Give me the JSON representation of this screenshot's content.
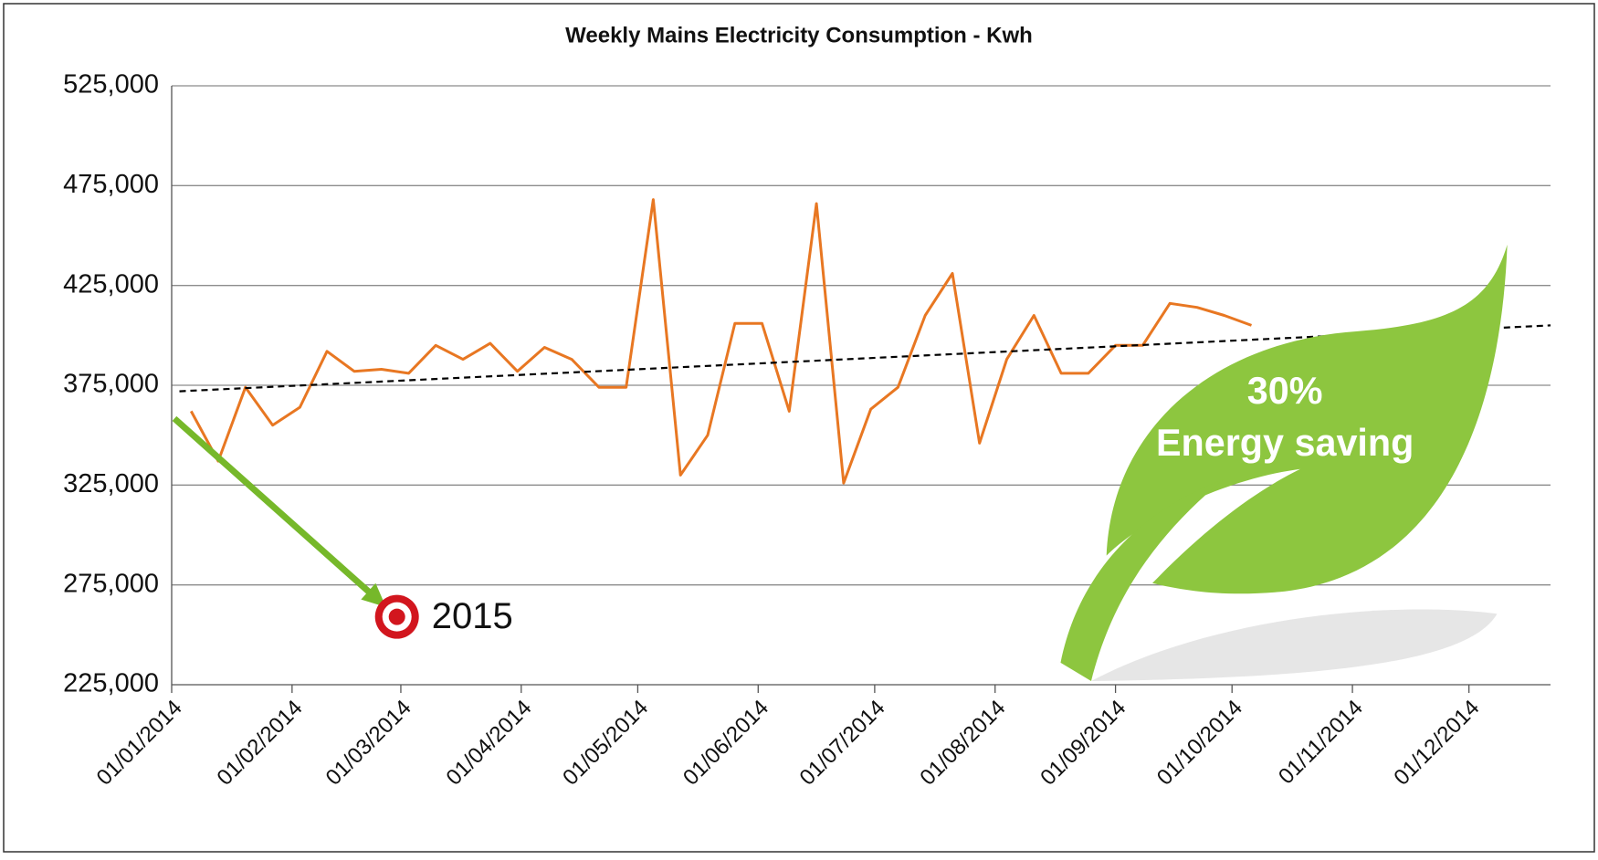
{
  "chart_data": {
    "type": "line",
    "title": "Weekly Mains  Electricity Consumption  - Kwh",
    "x": [
      "2014-01-06",
      "2014-01-13",
      "2014-01-20",
      "2014-01-27",
      "2014-02-03",
      "2014-02-10",
      "2014-02-17",
      "2014-02-24",
      "2014-03-03",
      "2014-03-10",
      "2014-03-17",
      "2014-03-24",
      "2014-03-31",
      "2014-04-07",
      "2014-04-14",
      "2014-04-21",
      "2014-04-28",
      "2014-05-05",
      "2014-05-12",
      "2014-05-19",
      "2014-05-26",
      "2014-06-02",
      "2014-06-09",
      "2014-06-16",
      "2014-06-23",
      "2014-06-30",
      "2014-07-07",
      "2014-07-14",
      "2014-07-21",
      "2014-07-28",
      "2014-08-04",
      "2014-08-11",
      "2014-08-18",
      "2014-08-25",
      "2014-09-01",
      "2014-09-08",
      "2014-09-15",
      "2014-09-22",
      "2014-09-29",
      "2014-10-06"
    ],
    "values": [
      362000,
      337000,
      374000,
      355000,
      364000,
      392000,
      382000,
      383000,
      381000,
      395000,
      388000,
      396000,
      382000,
      394000,
      388000,
      374000,
      374000,
      468000,
      330000,
      350000,
      406000,
      406000,
      362000,
      466000,
      326000,
      363000,
      374000,
      410000,
      431000,
      346000,
      388000,
      410000,
      381000,
      381000,
      395000,
      395000,
      416000,
      414000,
      410000,
      405000
    ],
    "color": "#e87722",
    "trendline": {
      "x": [
        "2014-01-03",
        "2014-12-22"
      ],
      "values": [
        372000,
        405000
      ],
      "color": "#000000"
    },
    "xlim": [
      "2014-01-01",
      "2014-12-22"
    ],
    "xticks": [
      {
        "value": "2014-01-01",
        "label": "01/01/2014"
      },
      {
        "value": "2014-02-01",
        "label": "01/02/2014"
      },
      {
        "value": "2014-03-01",
        "label": "01/03/2014"
      },
      {
        "value": "2014-04-01",
        "label": "01/04/2014"
      },
      {
        "value": "2014-05-01",
        "label": "01/05/2014"
      },
      {
        "value": "2014-06-01",
        "label": "01/06/2014"
      },
      {
        "value": "2014-07-01",
        "label": "01/07/2014"
      },
      {
        "value": "2014-08-01",
        "label": "01/08/2014"
      },
      {
        "value": "2014-09-01",
        "label": "01/09/2014"
      },
      {
        "value": "2014-10-01",
        "label": "01/10/2014"
      },
      {
        "value": "2014-11-01",
        "label": "01/11/2014"
      },
      {
        "value": "2014-12-01",
        "label": "01/12/2014"
      }
    ],
    "ylim": [
      225000,
      525000
    ],
    "yticks": [
      {
        "value": 225000,
        "label": "225,000"
      },
      {
        "value": 275000,
        "label": "275,000"
      },
      {
        "value": 325000,
        "label": "325,000"
      },
      {
        "value": 375000,
        "label": "375,000"
      },
      {
        "value": 425000,
        "label": "425,000"
      },
      {
        "value": 475000,
        "label": "475,000"
      },
      {
        "value": 525000,
        "label": "525,000"
      }
    ],
    "grid": true,
    "target": {
      "label": "2015",
      "x": "2014-02-28",
      "value": 259000
    },
    "callout": {
      "percent": "30%",
      "text": "Energy saving"
    }
  }
}
